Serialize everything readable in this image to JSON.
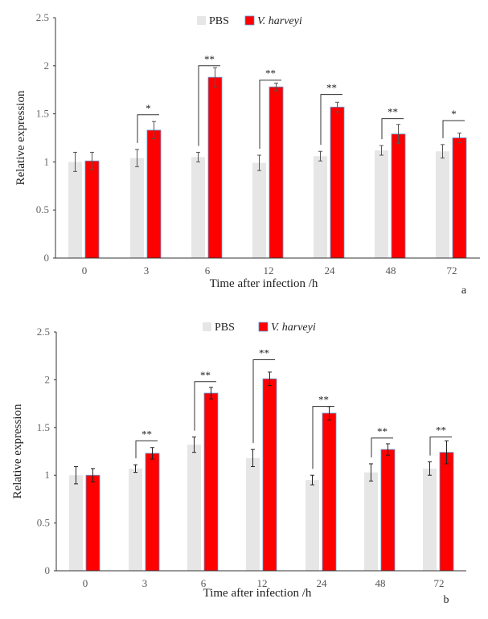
{
  "colors": {
    "pbs": "#e6e6e6",
    "vh": "#ff0000",
    "vh_edge": "#5b9bd5",
    "axis": "#333333",
    "error": "#555555"
  },
  "chart_data": [
    {
      "type": "bar",
      "panel_label": "a",
      "xlabel": "Time after infection /h",
      "ylabel": "Relative expression",
      "categories": [
        "0",
        "3",
        "6",
        "12",
        "24",
        "48",
        "72"
      ],
      "ylim": [
        0,
        2.5
      ],
      "yticks": [
        "0",
        "0.5",
        "1",
        "1.5",
        "2",
        "2.5"
      ],
      "grid": false,
      "legend": "top-center",
      "series": [
        {
          "name": "PBS",
          "values": [
            1.0,
            1.04,
            1.05,
            0.99,
            1.06,
            1.12,
            1.11
          ],
          "errors": [
            0.1,
            0.09,
            0.05,
            0.08,
            0.05,
            0.05,
            0.07
          ]
        },
        {
          "name": "V. harveyi",
          "values": [
            1.01,
            1.33,
            1.88,
            1.78,
            1.57,
            1.29,
            1.25
          ],
          "errors": [
            0.09,
            0.09,
            0.1,
            0.04,
            0.05,
            0.1,
            0.05
          ]
        }
      ],
      "significance": [
        "",
        "*",
        "**",
        "**",
        "**",
        "**",
        "*"
      ],
      "bracket_levels": [
        null,
        1.49,
        2.0,
        1.85,
        1.7,
        1.45,
        1.43
      ]
    },
    {
      "type": "bar",
      "panel_label": "b",
      "xlabel": "Time after infection /h",
      "ylabel": "Relative expression",
      "categories": [
        "0",
        "3",
        "6",
        "12",
        "24",
        "48",
        "72"
      ],
      "ylim": [
        0,
        2.5
      ],
      "yticks": [
        "0",
        "0.5",
        "1",
        "1.5",
        "2",
        "2.5"
      ],
      "grid": false,
      "legend": "top-center",
      "series": [
        {
          "name": "PBS",
          "values": [
            1.0,
            1.07,
            1.32,
            1.18,
            0.95,
            1.03,
            1.07
          ],
          "errors": [
            0.09,
            0.04,
            0.08,
            0.09,
            0.05,
            0.09,
            0.07
          ]
        },
        {
          "name": "V. harveyi",
          "values": [
            1.0,
            1.23,
            1.86,
            2.01,
            1.65,
            1.27,
            1.24
          ],
          "errors": [
            0.07,
            0.06,
            0.06,
            0.07,
            0.07,
            0.06,
            0.12
          ]
        }
      ],
      "significance": [
        "",
        "**",
        "**",
        "**",
        "**",
        "**",
        "**"
      ],
      "bracket_levels": [
        null,
        1.36,
        1.98,
        2.21,
        1.72,
        1.39,
        1.4
      ]
    }
  ]
}
